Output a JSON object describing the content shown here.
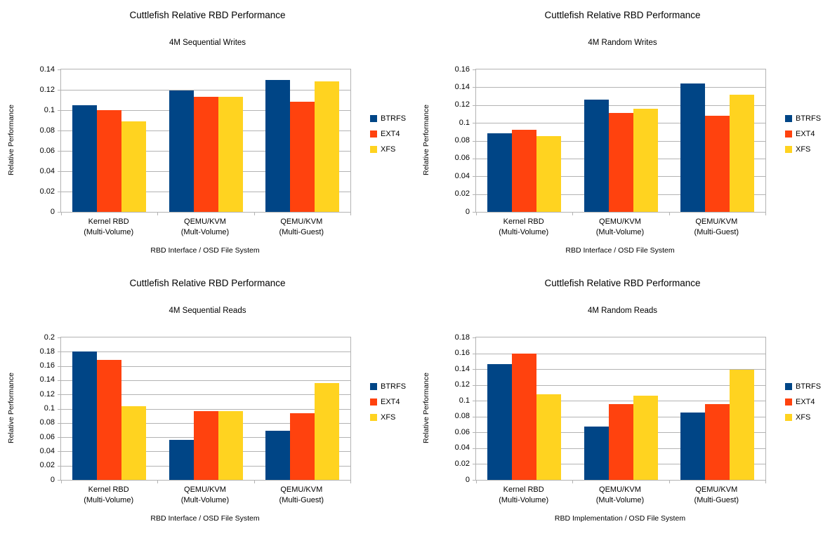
{
  "style": {
    "background": "#ffffff",
    "grid_color": "#b3b3b3",
    "axis_color": "#b3b3b3",
    "text_color": "#000000"
  },
  "legend_labels": [
    "BTRFS",
    "EXT4",
    "XFS"
  ],
  "series_colors": {
    "BTRFS": "#004586",
    "EXT4": "#ff420e",
    "XFS": "#ffd320"
  },
  "chart_data": [
    {
      "type": "bar",
      "title": "Cuttlefish Relative RBD Performance",
      "subtitle": "4M Sequential Writes",
      "xlabel": "RBD Interface / OSD File System",
      "ylabel": "Relative Performance",
      "categories": [
        "Kernel RBD\n(Multi-Volume)",
        "QEMU/KVM\n(Mult-Volume)",
        "QEMU/KVM\n(Multi-Guest)"
      ],
      "series": [
        {
          "name": "BTRFS",
          "color": "#004586",
          "values": [
            0.105,
            0.119,
            0.13
          ]
        },
        {
          "name": "EXT4",
          "color": "#ff420e",
          "values": [
            0.1,
            0.113,
            0.108
          ]
        },
        {
          "name": "XFS",
          "color": "#ffd320",
          "values": [
            0.089,
            0.113,
            0.128
          ]
        }
      ],
      "ylim": [
        0,
        0.14
      ],
      "ytick_step": 0.02,
      "grid": true,
      "legend_position": "right"
    },
    {
      "type": "bar",
      "title": "Cuttlefish Relative RBD Performance",
      "subtitle": "4M Random Writes",
      "xlabel": "RBD Interface / OSD File System",
      "ylabel": "Relative Performance",
      "categories": [
        "Kernel RBD\n(Multi-Volume)",
        "QEMU/KVM\n(Mult-Volume)",
        "QEMU/KVM\n(Multi-Guest)"
      ],
      "series": [
        {
          "name": "BTRFS",
          "color": "#004586",
          "values": [
            0.088,
            0.126,
            0.144
          ]
        },
        {
          "name": "EXT4",
          "color": "#ff420e",
          "values": [
            0.092,
            0.111,
            0.108
          ]
        },
        {
          "name": "XFS",
          "color": "#ffd320",
          "values": [
            0.085,
            0.116,
            0.132
          ]
        }
      ],
      "ylim": [
        0,
        0.16
      ],
      "ytick_step": 0.02,
      "grid": true,
      "legend_position": "right"
    },
    {
      "type": "bar",
      "title": "Cuttlefish Relative RBD Performance",
      "subtitle": "4M Sequential Reads",
      "xlabel": "RBD Interface / OSD File System",
      "ylabel": "Relative Performance",
      "categories": [
        "Kernel RBD\n(Multi-Volume)",
        "QEMU/KVM\n(Mult-Volume)",
        "QEMU/KVM\n(Multi-Guest)"
      ],
      "series": [
        {
          "name": "BTRFS",
          "color": "#004586",
          "values": [
            0.18,
            0.056,
            0.069
          ]
        },
        {
          "name": "EXT4",
          "color": "#ff420e",
          "values": [
            0.168,
            0.097,
            0.094
          ]
        },
        {
          "name": "XFS",
          "color": "#ffd320",
          "values": [
            0.103,
            0.097,
            0.136
          ]
        }
      ],
      "ylim": [
        0,
        0.2
      ],
      "ytick_step": 0.02,
      "grid": true,
      "legend_position": "right"
    },
    {
      "type": "bar",
      "title": "Cuttlefish Relative RBD Performance",
      "subtitle": "4M Random Reads",
      "xlabel": "RBD Implementation / OSD File System",
      "ylabel": "Relative Performance",
      "categories": [
        "Kernel RBD\n(Multi-Volume)",
        "QEMU/KVM\n(Mult-Volume)",
        "QEMU/KVM\n(Multi-Guest)"
      ],
      "series": [
        {
          "name": "BTRFS",
          "color": "#004586",
          "values": [
            0.146,
            0.067,
            0.085
          ]
        },
        {
          "name": "EXT4",
          "color": "#ff420e",
          "values": [
            0.16,
            0.096,
            0.096
          ]
        },
        {
          "name": "XFS",
          "color": "#ffd320",
          "values": [
            0.108,
            0.106,
            0.139
          ]
        }
      ],
      "ylim": [
        0,
        0.18
      ],
      "ytick_step": 0.02,
      "grid": true,
      "legend_position": "right"
    }
  ]
}
